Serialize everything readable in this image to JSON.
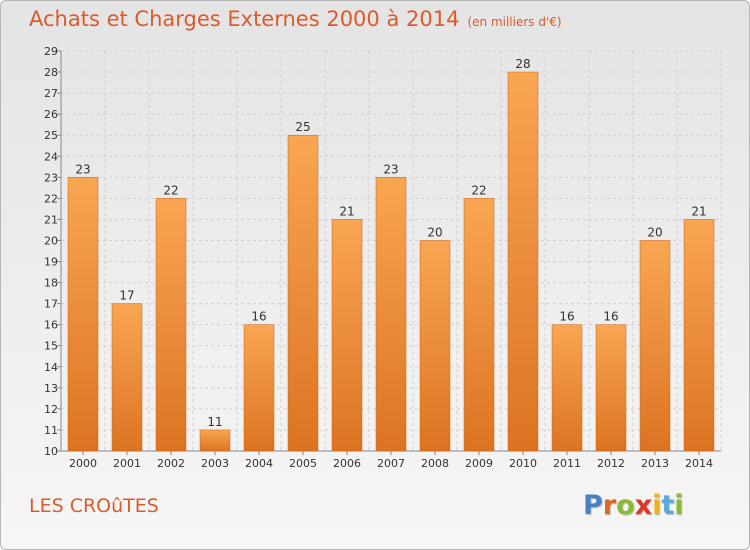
{
  "header": {
    "title": "Achats et Charges Externes 2000 à 2014",
    "unit": "(en milliers d'€)"
  },
  "footer": {
    "commune": "LES CROûTES",
    "logo_letters": [
      "P",
      "r",
      "o",
      "x",
      "i",
      "t",
      "i"
    ],
    "logo_colors": [
      "#4a7fc4",
      "#e0661f",
      "#8ab936",
      "#d93a2a",
      "#f0b21c",
      "#5aa9d9",
      "#8ab936"
    ]
  },
  "colors": {
    "bar_light": "#f9a652",
    "bar_dark": "#dc7422",
    "title": "#dd5a2b"
  },
  "chart_data": {
    "type": "bar",
    "title": "Achats et Charges Externes 2000 à 2014",
    "subtitle": "(en milliers d'€)",
    "xlabel": "",
    "ylabel": "",
    "categories": [
      "2000",
      "2001",
      "2002",
      "2003",
      "2004",
      "2005",
      "2006",
      "2007",
      "2008",
      "2009",
      "2010",
      "2011",
      "2012",
      "2013",
      "2014"
    ],
    "values": [
      23,
      17,
      22,
      11,
      16,
      25,
      21,
      23,
      20,
      22,
      28,
      16,
      16,
      20,
      21
    ],
    "ylim": [
      10,
      29
    ],
    "yticks": [
      10,
      11,
      12,
      13,
      14,
      15,
      16,
      17,
      18,
      19,
      20,
      21,
      22,
      23,
      24,
      25,
      26,
      27,
      28,
      29
    ],
    "grid": true,
    "data_labels": true
  }
}
